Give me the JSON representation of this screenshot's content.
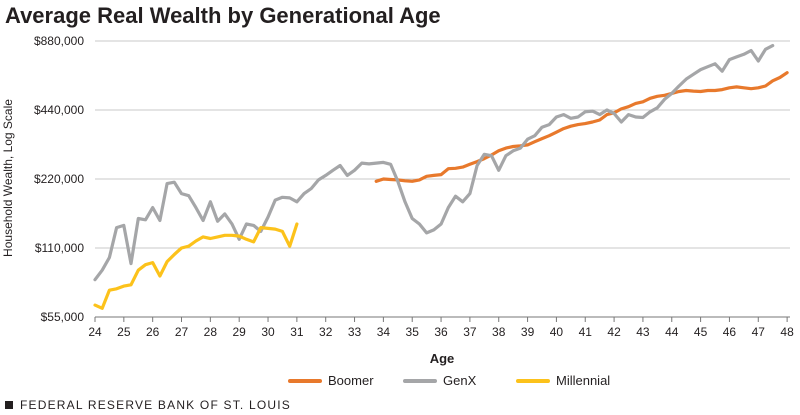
{
  "title": "Average Real Wealth by Generational Age",
  "footer": "FEDERAL RESERVE BANK OF ST. LOUIS",
  "chart_data": {
    "type": "line",
    "title": "Average Real Wealth by Generational Age",
    "xlabel": "Age",
    "ylabel": "Household Wealth, Log Scale",
    "y_scale": "log",
    "xlim": [
      24,
      48.1
    ],
    "ylim": [
      55000,
      880000
    ],
    "x_ticks": [
      "24",
      "25",
      "26",
      "27",
      "28",
      "29",
      "30",
      "31",
      "32",
      "33",
      "34",
      "35",
      "36",
      "37",
      "38",
      "39",
      "40",
      "41",
      "42",
      "43",
      "44",
      "45",
      "46",
      "47",
      "48"
    ],
    "y_ticks": [
      {
        "value": 55000,
        "label": "$55,000"
      },
      {
        "value": 110000,
        "label": "$110,000"
      },
      {
        "value": 220000,
        "label": "$220,000"
      },
      {
        "value": 440000,
        "label": "$440,000"
      },
      {
        "value": 880000,
        "label": "$880,000"
      }
    ],
    "grid": "horizontal",
    "legend_position": "bottom",
    "series": [
      {
        "name": "Boomer",
        "color": "#e8792c",
        "x": [
          33.75,
          34.0,
          34.25,
          34.5,
          34.75,
          35.0,
          35.25,
          35.5,
          35.75,
          36.0,
          36.25,
          36.5,
          36.75,
          37.0,
          37.25,
          37.5,
          37.75,
          38.0,
          38.25,
          38.5,
          38.75,
          39.0,
          39.25,
          39.5,
          39.75,
          40.0,
          40.25,
          40.5,
          40.75,
          41.0,
          41.25,
          41.5,
          41.75,
          42.0,
          42.25,
          42.5,
          42.75,
          43.0,
          43.25,
          43.5,
          43.75,
          44.0,
          44.25,
          44.5,
          44.75,
          45.0,
          45.25,
          45.5,
          45.75,
          46.0,
          46.25,
          46.5,
          46.75,
          47.0,
          47.25,
          47.5,
          47.75,
          48.0
        ],
        "values": [
          215000,
          220000,
          219000,
          218000,
          216000,
          215000,
          218000,
          226000,
          228000,
          230000,
          244000,
          245000,
          248000,
          255000,
          262000,
          270000,
          280000,
          292000,
          300000,
          305000,
          307000,
          310000,
          320000,
          330000,
          340000,
          352000,
          365000,
          374000,
          380000,
          384000,
          390000,
          398000,
          420000,
          428000,
          445000,
          455000,
          470000,
          478000,
          495000,
          505000,
          510000,
          520000,
          530000,
          535000,
          532000,
          530000,
          535000,
          535000,
          540000,
          550000,
          555000,
          550000,
          545000,
          550000,
          560000,
          590000,
          610000,
          640000
        ]
      },
      {
        "name": "GenX",
        "color": "#a5a6a8",
        "x": [
          24.0,
          24.25,
          24.5,
          24.75,
          25.0,
          25.25,
          25.5,
          25.75,
          26.0,
          26.25,
          26.5,
          26.75,
          27.0,
          27.25,
          27.5,
          27.75,
          28.0,
          28.25,
          28.5,
          28.75,
          29.0,
          29.25,
          29.5,
          29.75,
          30.0,
          30.25,
          30.5,
          30.75,
          31.0,
          31.25,
          31.5,
          31.75,
          32.0,
          32.25,
          32.5,
          32.75,
          33.0,
          33.25,
          33.5,
          33.75,
          34.0,
          34.25,
          34.5,
          34.75,
          35.0,
          35.25,
          35.5,
          35.75,
          36.0,
          36.25,
          36.5,
          36.75,
          37.0,
          37.25,
          37.5,
          37.75,
          38.0,
          38.25,
          38.5,
          38.75,
          39.0,
          39.25,
          39.5,
          39.75,
          40.0,
          40.25,
          40.5,
          40.75,
          41.0,
          41.25,
          41.5,
          41.75,
          42.0,
          42.25,
          42.5,
          42.75,
          43.0,
          43.25,
          43.5,
          43.75,
          44.0,
          44.25,
          44.5,
          44.75,
          45.0,
          45.25,
          45.5,
          45.75,
          46.0,
          46.25,
          46.5,
          46.75,
          47.0,
          47.25,
          47.5
        ],
        "values": [
          80000,
          88000,
          100000,
          135000,
          138000,
          94000,
          148000,
          146000,
          165000,
          145000,
          210000,
          213000,
          190000,
          186000,
          165000,
          145000,
          175000,
          144000,
          155000,
          140000,
          120000,
          140000,
          138000,
          130000,
          150000,
          178000,
          183000,
          182000,
          175000,
          190000,
          200000,
          218000,
          228000,
          240000,
          252000,
          228000,
          240000,
          258000,
          256000,
          258000,
          260000,
          255000,
          215000,
          175000,
          148000,
          140000,
          128000,
          132000,
          140000,
          165000,
          185000,
          175000,
          190000,
          252000,
          282000,
          278000,
          240000,
          278000,
          292000,
          300000,
          328000,
          340000,
          370000,
          380000,
          410000,
          420000,
          405000,
          410000,
          432000,
          435000,
          420000,
          440000,
          425000,
          390000,
          420000,
          410000,
          408000,
          432000,
          450000,
          490000,
          520000,
          560000,
          600000,
          630000,
          660000,
          680000,
          700000,
          650000,
          730000,
          750000,
          770000,
          800000,
          720000,
          810000,
          840000
        ]
      },
      {
        "name": "Millennial",
        "color": "#fcc21b",
        "x": [
          24.0,
          24.25,
          24.5,
          24.75,
          25.0,
          25.25,
          25.5,
          25.75,
          26.0,
          26.25,
          26.5,
          26.75,
          27.0,
          27.25,
          27.5,
          27.75,
          28.0,
          28.25,
          28.5,
          28.75,
          29.0,
          29.25,
          29.5,
          29.75,
          30.0,
          30.25,
          30.5,
          30.75,
          31.0
        ],
        "values": [
          62000,
          60000,
          72000,
          73000,
          75000,
          76000,
          88000,
          93000,
          95000,
          83000,
          96000,
          103000,
          110000,
          112000,
          118000,
          123000,
          121000,
          123000,
          125000,
          125000,
          124000,
          120000,
          117000,
          135000,
          134000,
          133000,
          130000,
          112000,
          140000
        ]
      }
    ]
  }
}
